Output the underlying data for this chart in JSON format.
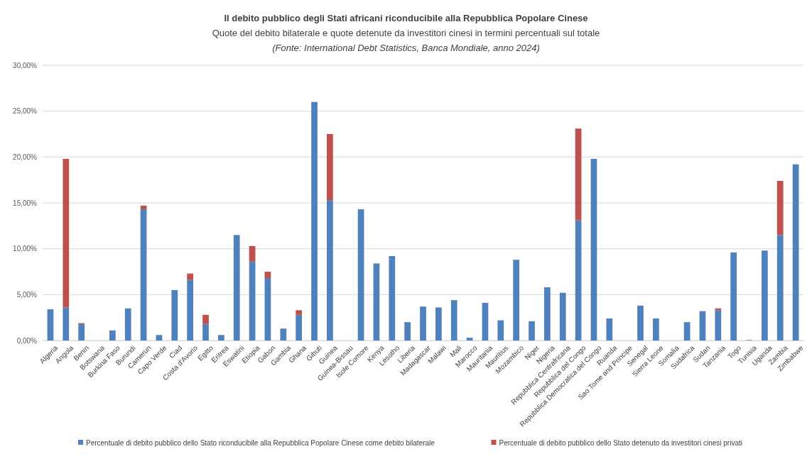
{
  "chart_data": {
    "type": "bar",
    "title": "Il debito pubblico degli Stati africani riconducibile alla Repubblica Popolare Cinese",
    "subtitle": "Quote del debito bilaterale e quote detenute da investitori cinesi in termini percentuali sul totale",
    "annotations": [
      "(Fonte: International Debt Statistics, Banca Mondiale, anno 2024)"
    ],
    "categories": [
      "Algeria",
      "Angola",
      "Benin",
      "Botswana",
      "Burkina Faso",
      "Burundi",
      "Camerun",
      "Capo Verde",
      "Ciad",
      "Costa d'Avorio",
      "Egitto",
      "Eritrea",
      "Eswatini",
      "Etiopia",
      "Gabon",
      "Gambia",
      "Ghana",
      "Gibuti",
      "Guinea",
      "Guinea-Bissau",
      "Isole Comore",
      "Kenya",
      "Lesotho",
      "Liberia",
      "Madagascar",
      "Malawi",
      "Mali",
      "Marocco",
      "Mauritania",
      "Mauritius",
      "Mozambico",
      "Niger",
      "Nigeria",
      "Repubblica Centrafricana",
      "Repubblica del Congo",
      "Repubblica Democratica del Congo",
      "Ruanda",
      "Sao Tome and Principe",
      "Senegal",
      "Sierra Leone",
      "Somalia",
      "Sudafrica",
      "Sudan",
      "Tanzania",
      "Togo",
      "Tunisia",
      "Uganda",
      "Zambia",
      "Zimbabwe"
    ],
    "stacked": true,
    "series": [
      {
        "name": "Percentuale di debito pubblico dello Stato riconducibile alla Repubblica Popolare Cinese come debito bilaterale",
        "color": "#4f81bd",
        "values": [
          3.4,
          3.6,
          1.8,
          0,
          1.1,
          3.5,
          14.3,
          0.6,
          5.5,
          6.6,
          1.8,
          0.6,
          11.5,
          8.6,
          6.8,
          1.3,
          2.8,
          26.0,
          15.3,
          0,
          14.3,
          8.4,
          9.2,
          2.0,
          3.7,
          3.6,
          4.4,
          0.3,
          4.1,
          2.2,
          8.8,
          2.1,
          5.8,
          5.2,
          13.1,
          19.8,
          2.4,
          0,
          3.8,
          2.4,
          0,
          2.0,
          3.2,
          3.3,
          9.6,
          0.05,
          9.8,
          11.5,
          19.2
        ]
      },
      {
        "name": "Percentuale di debito pubblico dello Stato detenuto da investitori cinesi privati",
        "color": "#c0504d",
        "values": [
          0,
          16.2,
          0.1,
          0,
          0,
          0,
          0.4,
          0,
          0,
          0.7,
          1.0,
          0,
          0,
          1.7,
          0.7,
          0,
          0.5,
          0,
          7.2,
          0,
          0,
          0,
          0,
          0,
          0,
          0,
          0,
          0,
          0,
          0,
          0,
          0,
          0,
          0,
          10.0,
          0,
          0,
          0,
          0,
          0,
          0,
          0,
          0,
          0.2,
          0,
          0,
          0,
          5.9,
          0
        ]
      }
    ],
    "ylim": [
      0,
      30
    ],
    "yticks": [
      {
        "value": 0,
        "label": "0,00%"
      },
      {
        "value": 5,
        "label": "5,00%"
      },
      {
        "value": 10,
        "label": "10,00%"
      },
      {
        "value": 15,
        "label": "15,00%"
      },
      {
        "value": 20,
        "label": "20,00%"
      },
      {
        "value": 25,
        "label": "25,00%"
      },
      {
        "value": 30,
        "label": "30,00%"
      }
    ],
    "grid": "y",
    "legend": "bottom"
  }
}
